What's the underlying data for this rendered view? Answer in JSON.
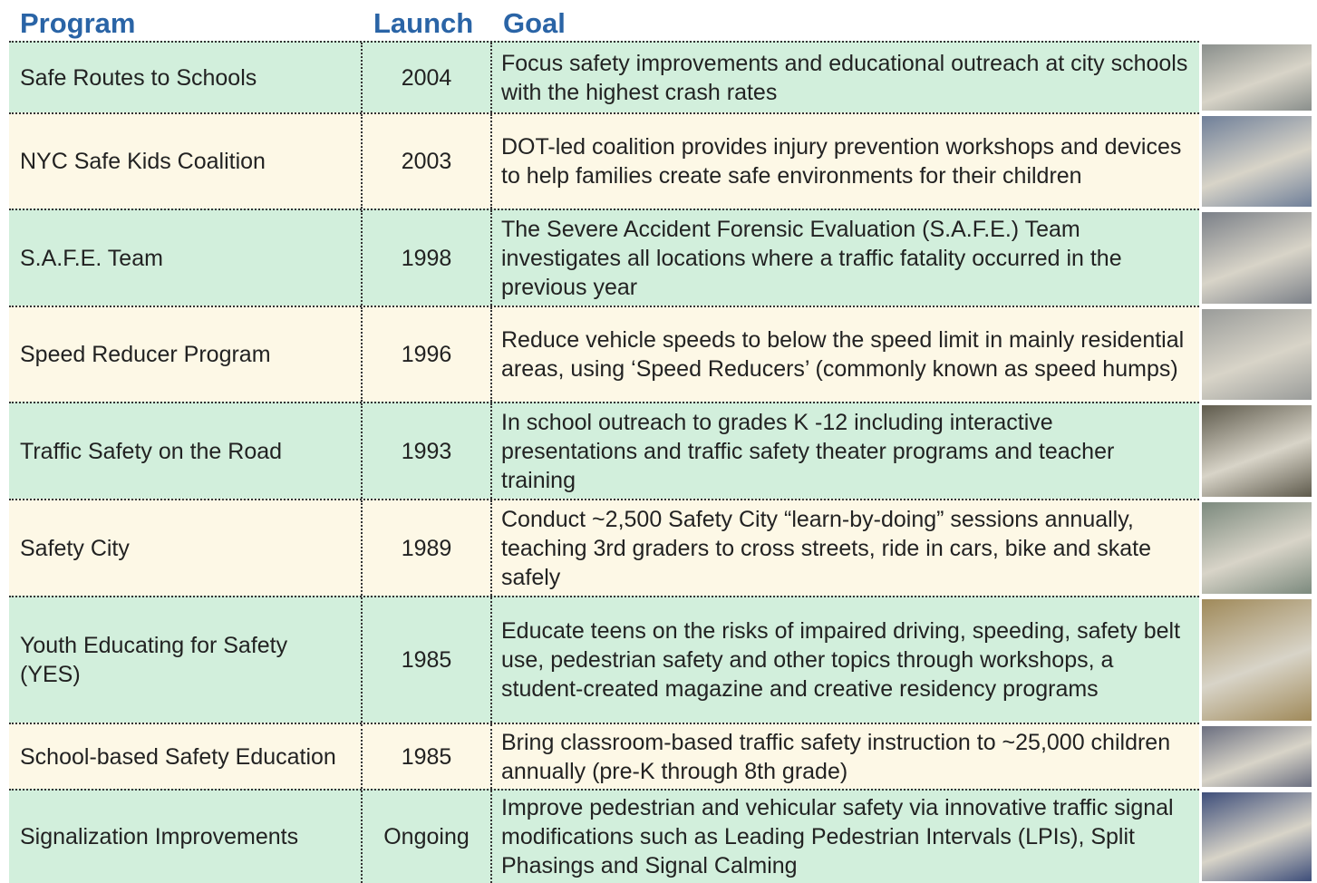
{
  "table": {
    "header": [
      "Program",
      "Launch",
      "Goal"
    ],
    "rows": [
      [
        "Safe Routes to Schools",
        "2004",
        "Focus safety improvements and educational outreach at city schools with the highest crash rates"
      ],
      [
        "NYC Safe Kids Coalition",
        "2003",
        "DOT-led coalition provides injury prevention workshops and devices to help families create safe environments for their children"
      ],
      [
        "S.A.F.E. Team",
        "1998",
        "The Severe Accident Forensic Evaluation (S.A.F.E.) Team investigates all locations where a traffic fatality occurred in the previous year"
      ],
      [
        "Speed Reducer Program",
        "1996",
        "Reduce vehicle speeds to below the speed limit in mainly residential areas, using ‘Speed Reducers’ (commonly known as speed humps)"
      ],
      [
        "Traffic Safety on the Road",
        "1993",
        "In school outreach to grades K -12 including interactive presentations and traffic safety theater programs and teacher training"
      ],
      [
        "Safety City",
        "1989",
        "Conduct ~2,500 Safety City “learn-by-doing” sessions annually, teaching 3rd graders to cross streets, ride in cars, bike and skate safely"
      ],
      [
        "Youth Educating for Safety (YES)",
        "1985",
        "Educate teens on the risks of impaired driving, speeding, safety belt use, pedestrian safety and other topics through workshops, a student-created magazine and creative residency programs"
      ],
      [
        "School-based Safety Education",
        "1985",
        "Bring classroom-based traffic safety instruction to ~25,000 children annually (pre-K through 8th grade)"
      ],
      [
        "Signalization Improvements",
        "Ongoing",
        "Improve pedestrian and vehicular safety via innovative traffic signal modifications such as Leading Pedestrian Intervals (LPIs), Split Phasings and Signal Calming"
      ]
    ]
  }
}
